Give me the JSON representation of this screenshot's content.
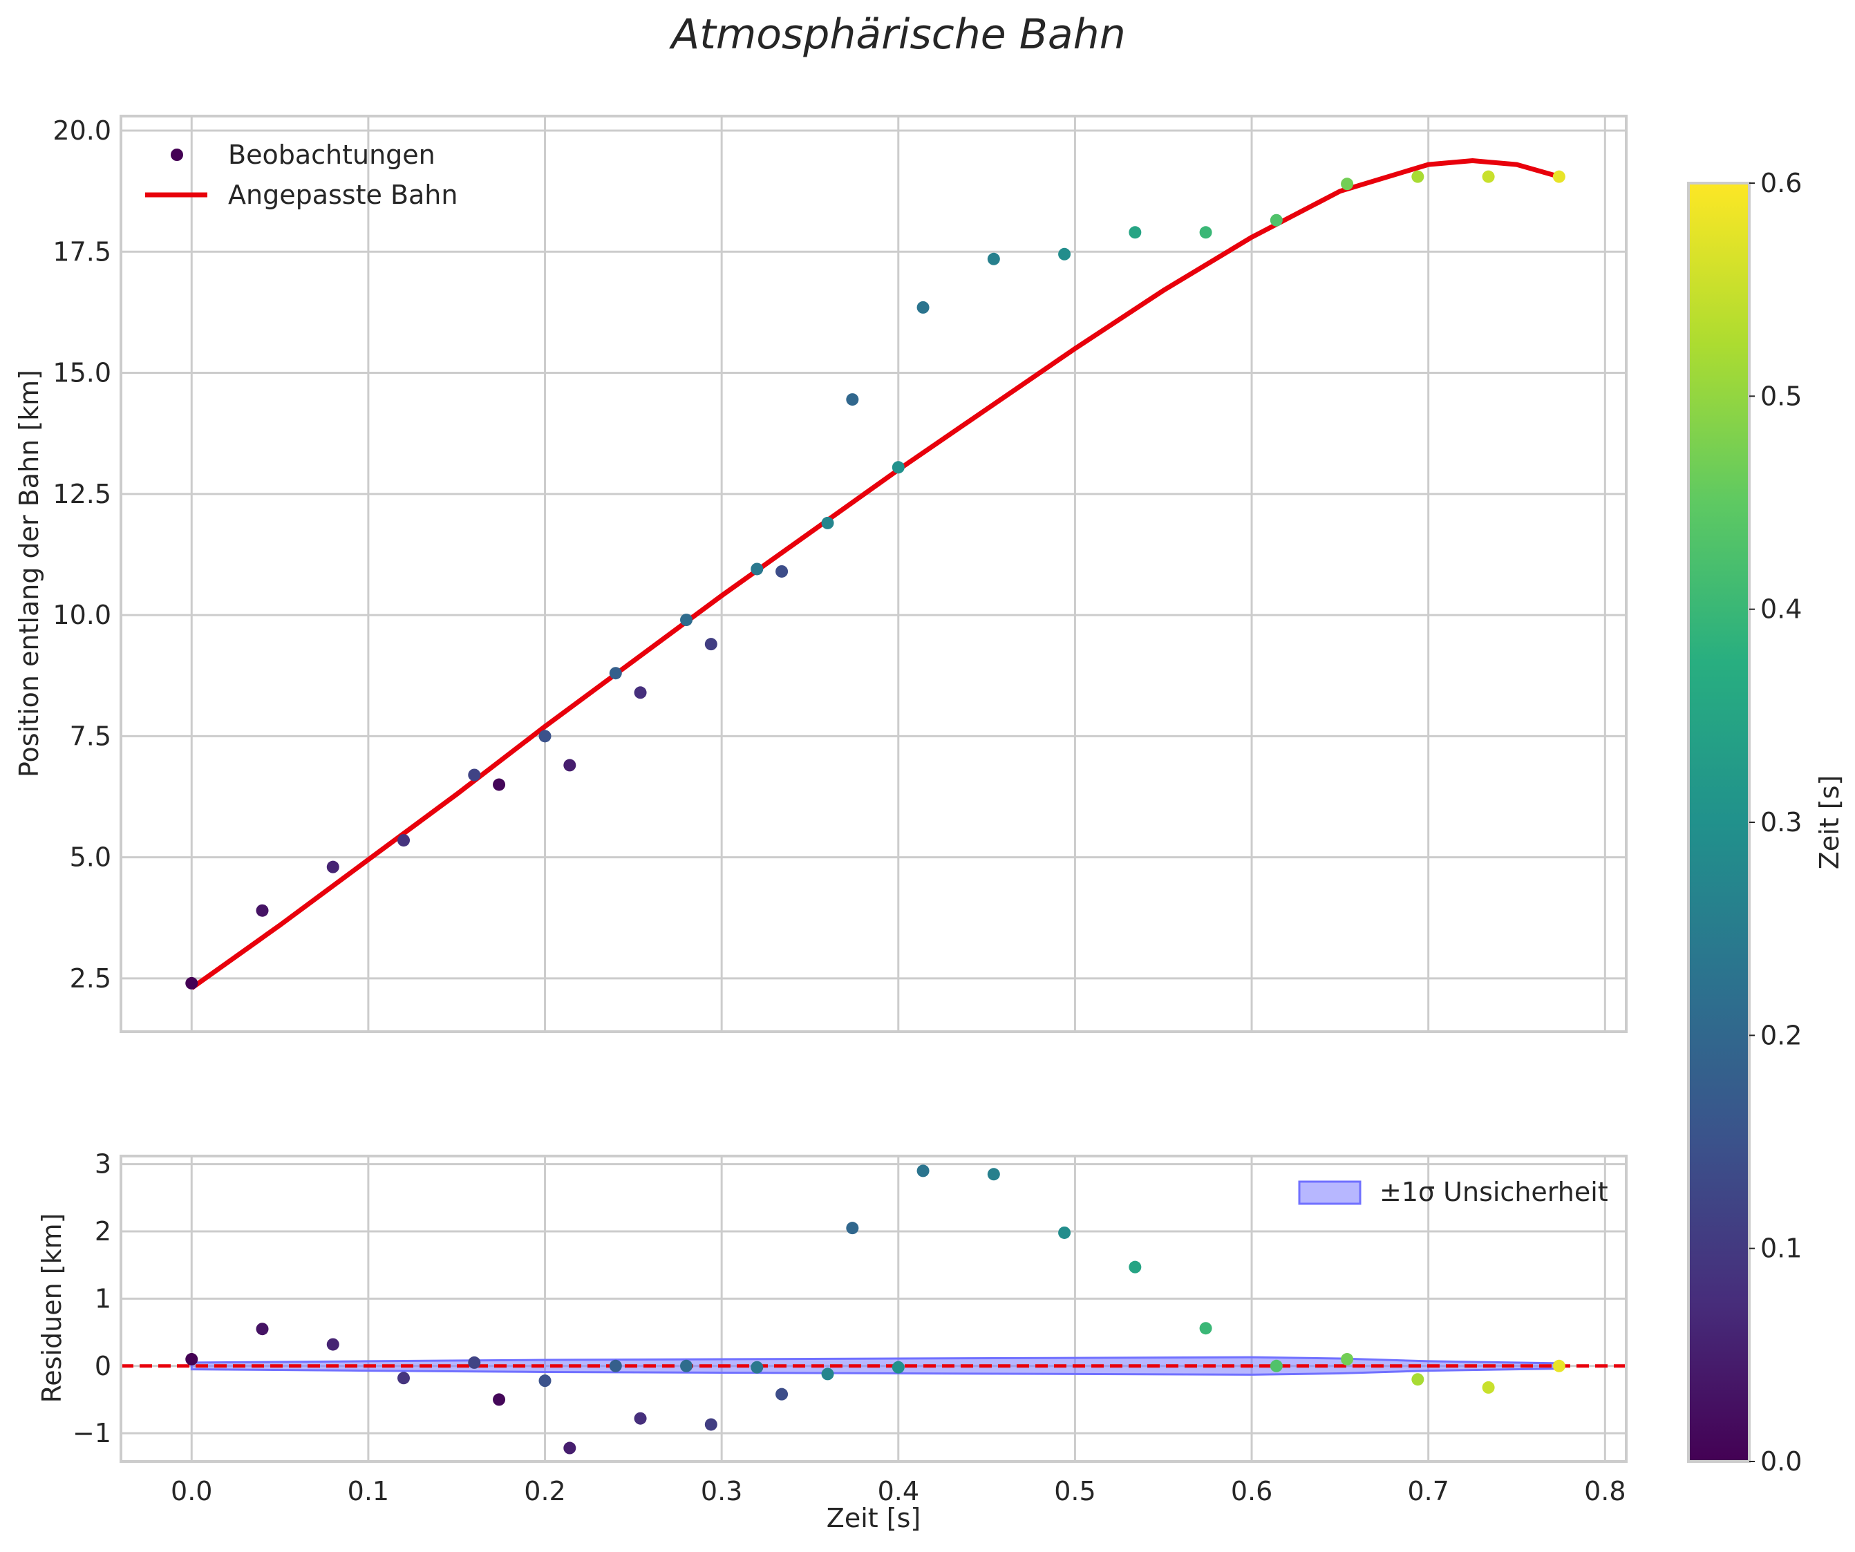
{
  "chart_data": {
    "type": "scatter",
    "title": "Atmosphärische Bahn",
    "colormap": "viridis",
    "main_panel": {
      "ylabel": "Position entlang der Bahn [km]",
      "xlim": [
        -0.04,
        0.812
      ],
      "ylim": [
        1.4,
        20.3
      ],
      "xticks": [
        0.0,
        0.1,
        0.2,
        0.3,
        0.4,
        0.5,
        0.6,
        0.7,
        0.8
      ],
      "yticks": [
        2.5,
        5.0,
        7.5,
        10.0,
        12.5,
        15.0,
        17.5,
        20.0
      ],
      "ytick_labels": [
        "2.5",
        "5.0",
        "7.5",
        "10.0",
        "12.5",
        "15.0",
        "17.5",
        "20.0"
      ],
      "grid": true,
      "legend_position": "top-left",
      "legend": {
        "observations": "Beobachtungen",
        "fit": "Angepasste Bahn"
      },
      "observations": {
        "x": [
          0.0,
          0.04,
          0.08,
          0.12,
          0.16,
          0.174,
          0.2,
          0.214,
          0.24,
          0.254,
          0.28,
          0.294,
          0.32,
          0.334,
          0.36,
          0.374,
          0.4,
          0.414,
          0.454,
          0.494,
          0.534,
          0.574,
          0.614,
          0.654,
          0.694,
          0.734,
          0.774
        ],
        "y": [
          2.4,
          3.9,
          4.8,
          5.35,
          6.7,
          6.5,
          7.5,
          6.9,
          8.8,
          8.4,
          9.9,
          9.4,
          10.95,
          10.9,
          11.9,
          14.45,
          13.05,
          16.35,
          17.35,
          17.45,
          17.9,
          17.9,
          18.15,
          18.9,
          19.05,
          19.05,
          19.05
        ],
        "time": [
          0.0,
          0.03,
          0.06,
          0.09,
          0.12,
          0.01,
          0.15,
          0.05,
          0.18,
          0.08,
          0.21,
          0.11,
          0.24,
          0.14,
          0.27,
          0.2,
          0.3,
          0.23,
          0.26,
          0.29,
          0.35,
          0.4,
          0.43,
          0.47,
          0.52,
          0.55,
          0.58
        ]
      },
      "fit_curve": {
        "color": "#e8000b",
        "x": [
          0.0,
          0.05,
          0.1,
          0.15,
          0.2,
          0.25,
          0.3,
          0.35,
          0.4,
          0.45,
          0.5,
          0.55,
          0.6,
          0.65,
          0.7,
          0.725,
          0.75,
          0.774
        ],
        "y": [
          2.3,
          3.6,
          4.95,
          6.3,
          7.7,
          9.05,
          10.4,
          11.7,
          13.0,
          14.25,
          15.5,
          16.7,
          17.8,
          18.75,
          19.3,
          19.38,
          19.3,
          19.05
        ]
      }
    },
    "residual_panel": {
      "xlabel": "Zeit [s]",
      "ylabel": "Residuen [km]",
      "xlim": [
        -0.04,
        0.812
      ],
      "ylim": [
        -1.42,
        3.12
      ],
      "xticks": [
        0.0,
        0.1,
        0.2,
        0.3,
        0.4,
        0.5,
        0.6,
        0.7,
        0.8
      ],
      "xtick_labels": [
        "0.0",
        "0.1",
        "0.2",
        "0.3",
        "0.4",
        "0.5",
        "0.6",
        "0.7",
        "0.8"
      ],
      "yticks": [
        -1,
        0,
        1,
        2,
        3
      ],
      "ytick_labels": [
        "−1",
        "0",
        "1",
        "2",
        "3"
      ],
      "grid": true,
      "legend_position": "top-right",
      "band_label": "±1σ Unsicherheit",
      "band_color": "#7070ff",
      "zero_line_color": "#e8000b",
      "residuals": {
        "x": [
          0.0,
          0.04,
          0.08,
          0.12,
          0.16,
          0.174,
          0.2,
          0.214,
          0.24,
          0.254,
          0.28,
          0.294,
          0.32,
          0.334,
          0.36,
          0.374,
          0.4,
          0.414,
          0.454,
          0.494,
          0.534,
          0.574,
          0.614,
          0.654,
          0.694,
          0.734,
          0.774
        ],
        "y": [
          0.1,
          0.55,
          0.32,
          -0.18,
          0.05,
          -0.5,
          -0.22,
          -1.22,
          0.0,
          -0.78,
          0.0,
          -0.87,
          -0.02,
          -0.42,
          -0.12,
          2.05,
          -0.02,
          2.9,
          2.85,
          1.98,
          1.47,
          0.56,
          0.0,
          0.1,
          -0.2,
          -0.32,
          0.0
        ],
        "time": [
          0.0,
          0.03,
          0.06,
          0.09,
          0.12,
          0.01,
          0.15,
          0.05,
          0.18,
          0.08,
          0.21,
          0.11,
          0.24,
          0.14,
          0.27,
          0.2,
          0.3,
          0.23,
          0.26,
          0.29,
          0.35,
          0.4,
          0.43,
          0.47,
          0.52,
          0.55,
          0.58
        ]
      },
      "band": {
        "x": [
          0.0,
          0.1,
          0.2,
          0.3,
          0.4,
          0.5,
          0.6,
          0.65,
          0.7,
          0.774
        ],
        "sigma": [
          0.05,
          0.07,
          0.09,
          0.1,
          0.11,
          0.12,
          0.13,
          0.11,
          0.07,
          0.04
        ]
      }
    },
    "colorbar": {
      "label": "Zeit [s]",
      "range": [
        0.0,
        0.6
      ],
      "ticks": [
        0.0,
        0.1,
        0.2,
        0.3,
        0.4,
        0.5,
        0.6
      ],
      "tick_labels": [
        "0.0",
        "0.1",
        "0.2",
        "0.3",
        "0.4",
        "0.5",
        "0.6"
      ]
    }
  }
}
